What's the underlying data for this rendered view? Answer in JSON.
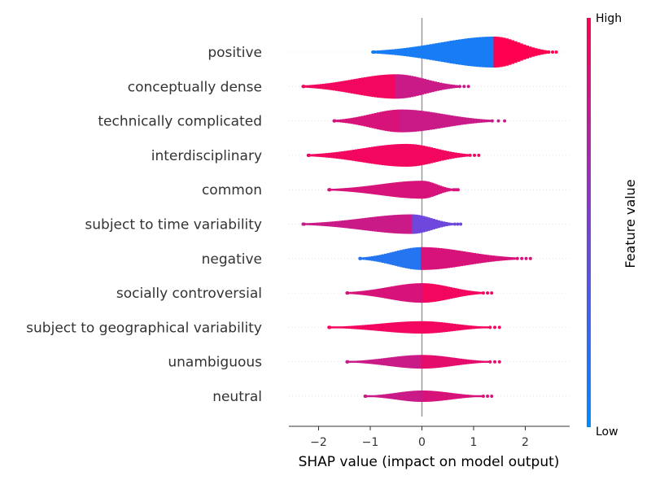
{
  "chart_data": {
    "type": "violin",
    "xlabel": "SHAP value (impact on model output)",
    "xlim": [
      -2.6,
      2.8
    ],
    "x_ticks": [
      -2,
      -1,
      0,
      1,
      2
    ],
    "x_tick_labels": [
      "−2",
      "−1",
      "0",
      "1",
      "2"
    ],
    "colorbar": {
      "label": "Feature value",
      "high": "High",
      "low": "Low"
    },
    "colors": {
      "low": "#008bfb",
      "mid": "#7a40d8",
      "high": "#ff0051",
      "axis": "#333333",
      "zero_line": "#999999"
    },
    "features": [
      {
        "name": "positive",
        "min": -0.95,
        "max": 2.6,
        "median": 1.4,
        "color_low_side": 0.1,
        "color_high_side": 1.0,
        "width": 0.95
      },
      {
        "name": "conceptually dense",
        "min": -2.3,
        "max": 0.9,
        "median": -0.5,
        "color_low_side": 0.95,
        "color_high_side": 0.8,
        "width": 0.75
      },
      {
        "name": "technically complicated",
        "min": -1.7,
        "max": 1.6,
        "median": -0.4,
        "color_low_side": 0.85,
        "color_high_side": 0.8,
        "width": 0.7
      },
      {
        "name": "interdisciplinary",
        "min": -2.2,
        "max": 1.1,
        "median": -0.3,
        "color_low_side": 0.95,
        "color_high_side": 0.95,
        "width": 0.7
      },
      {
        "name": "common",
        "min": -1.8,
        "max": 0.7,
        "median": 0.0,
        "color_low_side": 0.85,
        "color_high_side": 0.85,
        "width": 0.55
      },
      {
        "name": "subject to time variability",
        "min": -2.3,
        "max": 0.75,
        "median": -0.2,
        "color_low_side": 0.8,
        "color_high_side": 0.45,
        "width": 0.6
      },
      {
        "name": "negative",
        "min": -1.2,
        "max": 2.1,
        "median": 0.0,
        "color_low_side": 0.15,
        "color_high_side": 0.85,
        "width": 0.7
      },
      {
        "name": "socially controversial",
        "min": -1.45,
        "max": 1.35,
        "median": 0.0,
        "color_low_side": 0.85,
        "color_high_side": 0.95,
        "width": 0.6
      },
      {
        "name": "subject to geographical variability",
        "min": -1.8,
        "max": 1.5,
        "median": 0.0,
        "color_low_side": 0.95,
        "color_high_side": 0.95,
        "width": 0.38
      },
      {
        "name": "unambiguous",
        "min": -1.45,
        "max": 1.5,
        "median": 0.0,
        "color_low_side": 0.8,
        "color_high_side": 0.9,
        "width": 0.42
      },
      {
        "name": "neutral",
        "min": -1.1,
        "max": 1.35,
        "median": 0.0,
        "color_low_side": 0.8,
        "color_high_side": 0.85,
        "width": 0.35
      }
    ]
  }
}
